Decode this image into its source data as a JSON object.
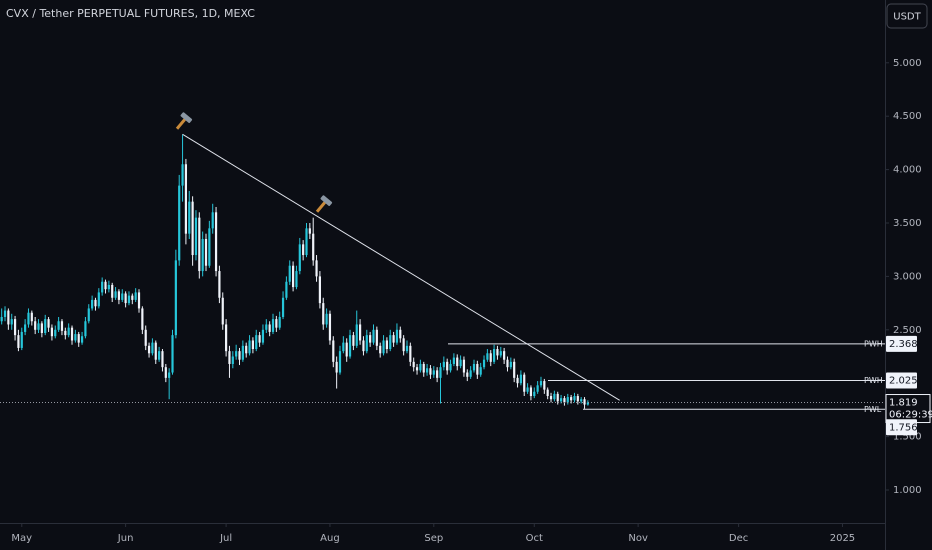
{
  "chart_data": {
    "type": "candlestick",
    "title": "CVX / Tether PERPETUAL FUTURES, 1D, MEXC",
    "currency": "USDT",
    "up_color": "#26c6da",
    "down_color": "#f0f3fa",
    "ylim": [
      0.691,
      5.588
    ],
    "yticks": [
      {
        "value": 1,
        "label": "1.000"
      },
      {
        "value": 1.5,
        "label": "1.500"
      },
      {
        "value": 2.5,
        "label": "2.500"
      },
      {
        "value": 3,
        "label": "3.000"
      },
      {
        "value": 3.5,
        "label": "3.500"
      },
      {
        "value": 4,
        "label": "4.000"
      },
      {
        "value": 4.5,
        "label": "4.500"
      },
      {
        "value": 5,
        "label": "5.000"
      }
    ],
    "xlim": [
      -0.5,
      263.7
    ],
    "xticks": [
      {
        "value": 6,
        "label": "May"
      },
      {
        "value": 37,
        "label": "Jun"
      },
      {
        "value": 67,
        "label": "Jul"
      },
      {
        "value": 98,
        "label": "Aug"
      },
      {
        "value": 129,
        "label": "Sep"
      },
      {
        "value": 159,
        "label": "Oct"
      },
      {
        "value": 190,
        "label": "Nov"
      },
      {
        "value": 220,
        "label": "Dec"
      },
      {
        "value": 251,
        "label": "2025"
      }
    ],
    "trendline": {
      "x": [
        54,
        184.5
      ],
      "y": [
        4.33,
        1.84
      ]
    },
    "levels": [
      {
        "name": "PWH",
        "value": 2.368,
        "value_label": "2.368"
      },
      {
        "name": "PWH",
        "value": 2.025,
        "value_label": "2.025"
      },
      {
        "name": "PWL",
        "value": 1.756,
        "value_label": "1.756"
      }
    ],
    "last_price": {
      "value": 1.819,
      "label": "1.819",
      "countdown": "06:29:39"
    },
    "series": [
      {
        "name": "CVX",
        "ohlc": [
          [
            2.58,
            2.7,
            2.55,
            2.62
          ],
          [
            2.62,
            2.72,
            2.58,
            2.68
          ],
          [
            2.68,
            2.7,
            2.5,
            2.55
          ],
          [
            2.55,
            2.65,
            2.5,
            2.6
          ],
          [
            2.6,
            2.63,
            2.4,
            2.45
          ],
          [
            2.45,
            2.5,
            2.3,
            2.33
          ],
          [
            2.33,
            2.52,
            2.31,
            2.48
          ],
          [
            2.48,
            2.6,
            2.45,
            2.55
          ],
          [
            2.55,
            2.7,
            2.52,
            2.66
          ],
          [
            2.66,
            2.68,
            2.54,
            2.58
          ],
          [
            2.58,
            2.62,
            2.46,
            2.5
          ],
          [
            2.5,
            2.6,
            2.47,
            2.56
          ],
          [
            2.56,
            2.58,
            2.43,
            2.47
          ],
          [
            2.47,
            2.64,
            2.45,
            2.6
          ],
          [
            2.6,
            2.62,
            2.48,
            2.52
          ],
          [
            2.52,
            2.55,
            2.4,
            2.44
          ],
          [
            2.44,
            2.54,
            2.42,
            2.5
          ],
          [
            2.5,
            2.62,
            2.48,
            2.58
          ],
          [
            2.58,
            2.6,
            2.45,
            2.49
          ],
          [
            2.49,
            2.52,
            2.41,
            2.45
          ],
          [
            2.45,
            2.56,
            2.43,
            2.52
          ],
          [
            2.52,
            2.54,
            2.36,
            2.4
          ],
          [
            2.4,
            2.5,
            2.38,
            2.46
          ],
          [
            2.46,
            2.48,
            2.34,
            2.38
          ],
          [
            2.38,
            2.48,
            2.36,
            2.44
          ],
          [
            2.44,
            2.62,
            2.42,
            2.58
          ],
          [
            2.58,
            2.74,
            2.56,
            2.7
          ],
          [
            2.7,
            2.82,
            2.68,
            2.78
          ],
          [
            2.78,
            2.8,
            2.68,
            2.72
          ],
          [
            2.72,
            2.89,
            2.7,
            2.85
          ],
          [
            2.85,
            2.99,
            2.82,
            2.95
          ],
          [
            2.95,
            2.97,
            2.84,
            2.88
          ],
          [
            2.88,
            2.96,
            2.85,
            2.92
          ],
          [
            2.92,
            2.94,
            2.76,
            2.8
          ],
          [
            2.8,
            2.9,
            2.78,
            2.86
          ],
          [
            2.86,
            2.88,
            2.74,
            2.78
          ],
          [
            2.78,
            2.88,
            2.76,
            2.84
          ],
          [
            2.84,
            2.86,
            2.71,
            2.75
          ],
          [
            2.75,
            2.86,
            2.73,
            2.82
          ],
          [
            2.82,
            2.84,
            2.74,
            2.78
          ],
          [
            2.78,
            2.89,
            2.76,
            2.85
          ],
          [
            2.85,
            2.88,
            2.66,
            2.7
          ],
          [
            2.7,
            2.72,
            2.46,
            2.5
          ],
          [
            2.5,
            2.54,
            2.31,
            2.35
          ],
          [
            2.35,
            2.38,
            2.24,
            2.28
          ],
          [
            2.28,
            2.42,
            2.26,
            2.38
          ],
          [
            2.38,
            2.4,
            2.18,
            2.22
          ],
          [
            2.22,
            2.34,
            2.2,
            2.3
          ],
          [
            2.3,
            2.32,
            2.11,
            2.15
          ],
          [
            2.15,
            2.18,
            2.01,
            2.05
          ],
          [
            2.05,
            2.14,
            1.85,
            2.1
          ],
          [
            2.1,
            2.5,
            2.08,
            2.45
          ],
          [
            2.45,
            3.25,
            2.42,
            3.15
          ],
          [
            3.15,
            3.95,
            3.1,
            3.85
          ],
          [
            3.85,
            4.33,
            3.7,
            4.05
          ],
          [
            4.05,
            4.1,
            3.3,
            3.4
          ],
          [
            3.4,
            3.8,
            3.35,
            3.7
          ],
          [
            3.7,
            3.75,
            3.1,
            3.2
          ],
          [
            3.2,
            3.62,
            3.15,
            3.55
          ],
          [
            3.55,
            3.6,
            2.98,
            3.05
          ],
          [
            3.05,
            3.42,
            3.0,
            3.35
          ],
          [
            3.35,
            3.4,
            3.05,
            3.1
          ],
          [
            3.1,
            3.52,
            3.08,
            3.45
          ],
          [
            3.45,
            3.68,
            3.4,
            3.6
          ],
          [
            3.6,
            3.65,
            3.0,
            3.05
          ],
          [
            3.05,
            3.1,
            2.75,
            2.8
          ],
          [
            2.8,
            2.85,
            2.5,
            2.55
          ],
          [
            2.55,
            2.6,
            2.25,
            2.3
          ],
          [
            2.3,
            2.35,
            2.05,
            2.18
          ],
          [
            2.18,
            2.3,
            2.14,
            2.25
          ],
          [
            2.25,
            2.36,
            2.22,
            2.3
          ],
          [
            2.3,
            2.33,
            2.17,
            2.22
          ],
          [
            2.22,
            2.4,
            2.2,
            2.35
          ],
          [
            2.35,
            2.38,
            2.24,
            2.28
          ],
          [
            2.28,
            2.45,
            2.26,
            2.4
          ],
          [
            2.4,
            2.43,
            2.28,
            2.32
          ],
          [
            2.32,
            2.5,
            2.3,
            2.45
          ],
          [
            2.45,
            2.48,
            2.34,
            2.38
          ],
          [
            2.38,
            2.55,
            2.36,
            2.5
          ],
          [
            2.5,
            2.6,
            2.47,
            2.55
          ],
          [
            2.55,
            2.58,
            2.44,
            2.48
          ],
          [
            2.48,
            2.65,
            2.46,
            2.6
          ],
          [
            2.6,
            2.63,
            2.48,
            2.52
          ],
          [
            2.52,
            2.67,
            2.5,
            2.62
          ],
          [
            2.62,
            2.86,
            2.6,
            2.8
          ],
          [
            2.8,
            3.0,
            2.78,
            2.95
          ],
          [
            2.95,
            3.15,
            2.92,
            3.1
          ],
          [
            3.1,
            3.14,
            2.86,
            2.9
          ],
          [
            2.9,
            3.1,
            2.88,
            3.05
          ],
          [
            3.05,
            3.36,
            3.02,
            3.3
          ],
          [
            3.3,
            3.34,
            3.15,
            3.2
          ],
          [
            3.2,
            3.5,
            3.18,
            3.45
          ],
          [
            3.45,
            3.5,
            3.35,
            3.4
          ],
          [
            3.4,
            3.55,
            3.1,
            3.15
          ],
          [
            3.15,
            3.2,
            2.95,
            3.0
          ],
          [
            3.0,
            3.05,
            2.7,
            2.75
          ],
          [
            2.75,
            2.8,
            2.5,
            2.55
          ],
          [
            2.55,
            2.7,
            2.52,
            2.65
          ],
          [
            2.65,
            2.68,
            2.36,
            2.4
          ],
          [
            2.4,
            2.44,
            2.15,
            2.2
          ],
          [
            2.2,
            2.25,
            1.95,
            2.1
          ],
          [
            2.1,
            2.35,
            2.08,
            2.3
          ],
          [
            2.3,
            2.44,
            2.28,
            2.38
          ],
          [
            2.38,
            2.42,
            2.2,
            2.25
          ],
          [
            2.25,
            2.5,
            2.23,
            2.45
          ],
          [
            2.45,
            2.48,
            2.31,
            2.35
          ],
          [
            2.35,
            2.68,
            2.33,
            2.55
          ],
          [
            2.55,
            2.6,
            2.36,
            2.4
          ],
          [
            2.4,
            2.44,
            2.26,
            2.3
          ],
          [
            2.3,
            2.5,
            2.28,
            2.45
          ],
          [
            2.45,
            2.48,
            2.34,
            2.38
          ],
          [
            2.38,
            2.55,
            2.36,
            2.5
          ],
          [
            2.5,
            2.53,
            2.31,
            2.35
          ],
          [
            2.35,
            2.38,
            2.24,
            2.28
          ],
          [
            2.28,
            2.45,
            2.26,
            2.4
          ],
          [
            2.4,
            2.43,
            2.28,
            2.32
          ],
          [
            2.32,
            2.5,
            2.3,
            2.45
          ],
          [
            2.45,
            2.48,
            2.34,
            2.38
          ],
          [
            2.38,
            2.56,
            2.36,
            2.5
          ],
          [
            2.5,
            2.53,
            2.38,
            2.42
          ],
          [
            2.42,
            2.45,
            2.26,
            2.3
          ],
          [
            2.3,
            2.4,
            2.28,
            2.35
          ],
          [
            2.35,
            2.38,
            2.16,
            2.2
          ],
          [
            2.2,
            2.24,
            2.11,
            2.15
          ],
          [
            2.15,
            2.18,
            2.08,
            2.12
          ],
          [
            2.12,
            2.22,
            2.1,
            2.18
          ],
          [
            2.18,
            2.2,
            2.06,
            2.1
          ],
          [
            2.1,
            2.18,
            2.07,
            2.14
          ],
          [
            2.14,
            2.17,
            2.04,
            2.08
          ],
          [
            2.08,
            2.16,
            2.05,
            2.12
          ],
          [
            2.12,
            2.15,
            2.01,
            2.05
          ],
          [
            2.05,
            2.19,
            1.81,
            2.15
          ],
          [
            2.15,
            2.25,
            2.12,
            2.2
          ],
          [
            2.2,
            2.23,
            2.08,
            2.12
          ],
          [
            2.12,
            2.22,
            2.1,
            2.18
          ],
          [
            2.18,
            2.28,
            2.16,
            2.24
          ],
          [
            2.24,
            2.27,
            2.12,
            2.16
          ],
          [
            2.16,
            2.26,
            2.14,
            2.22
          ],
          [
            2.22,
            2.25,
            2.06,
            2.1
          ],
          [
            2.1,
            2.13,
            2.02,
            2.06
          ],
          [
            2.06,
            2.16,
            2.04,
            2.12
          ],
          [
            2.12,
            2.22,
            2.1,
            2.18
          ],
          [
            2.18,
            2.21,
            2.04,
            2.08
          ],
          [
            2.08,
            2.19,
            2.06,
            2.15
          ],
          [
            2.15,
            2.26,
            2.13,
            2.22
          ],
          [
            2.22,
            2.32,
            2.2,
            2.28
          ],
          [
            2.28,
            2.31,
            2.16,
            2.2
          ],
          [
            2.2,
            2.36,
            2.18,
            2.32
          ],
          [
            2.32,
            2.35,
            2.22,
            2.26
          ],
          [
            2.26,
            2.34,
            2.24,
            2.3
          ],
          [
            2.3,
            2.33,
            2.18,
            2.22
          ],
          [
            2.22,
            2.25,
            2.11,
            2.15
          ],
          [
            2.15,
            2.24,
            2.13,
            2.2
          ],
          [
            2.2,
            2.23,
            2.01,
            2.05
          ],
          [
            2.05,
            2.08,
            1.96,
            2.0
          ],
          [
            2.0,
            2.12,
            1.98,
            2.08
          ],
          [
            2.08,
            2.1,
            1.88,
            1.92
          ],
          [
            1.92,
            2.0,
            1.9,
            1.96
          ],
          [
            1.96,
            1.98,
            1.84,
            1.88
          ],
          [
            1.88,
            1.96,
            1.86,
            1.92
          ],
          [
            1.92,
            2.02,
            1.9,
            1.98
          ],
          [
            1.98,
            2.06,
            1.96,
            2.02
          ],
          [
            2.02,
            2.04,
            1.9,
            1.94
          ],
          [
            1.94,
            1.96,
            1.85,
            1.88
          ],
          [
            1.88,
            1.91,
            1.82,
            1.85
          ],
          [
            1.85,
            1.93,
            1.83,
            1.9
          ],
          [
            1.9,
            1.92,
            1.8,
            1.83
          ],
          [
            1.83,
            1.89,
            1.81,
            1.86
          ],
          [
            1.86,
            1.88,
            1.79,
            1.82
          ],
          [
            1.82,
            1.9,
            1.8,
            1.87
          ],
          [
            1.87,
            1.89,
            1.81,
            1.84
          ],
          [
            1.84,
            1.91,
            1.82,
            1.88
          ],
          [
            1.88,
            1.9,
            1.8,
            1.83
          ],
          [
            1.83,
            1.87,
            1.81,
            1.85
          ],
          [
            1.85,
            1.87,
            1.76,
            1.8
          ],
          [
            1.8,
            1.84,
            1.79,
            1.819
          ]
        ]
      }
    ]
  }
}
